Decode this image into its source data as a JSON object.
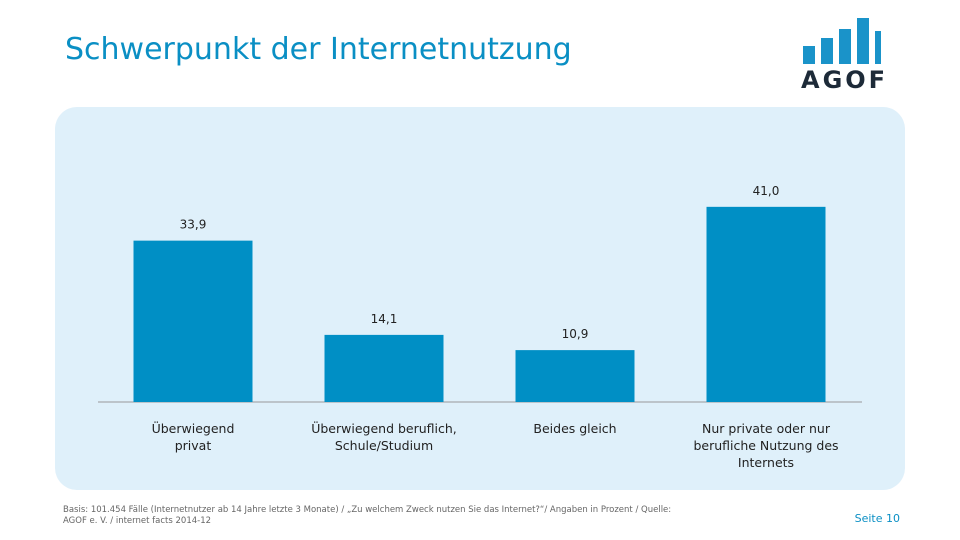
{
  "title": "Schwerpunkt der Internetnutzung",
  "logo": "AGOF",
  "chart_data": {
    "type": "bar",
    "categories": [
      "Überwiegend\nprivat",
      "Überwiegend beruflich,\nSchule/Studium",
      "Beides gleich",
      "Nur private oder nur\nberufliche Nutzung des\nInternets"
    ],
    "values": [
      33.9,
      14.1,
      10.9,
      41.0
    ],
    "value_labels": [
      "33,9",
      "14,1",
      "10,9",
      "41,0"
    ],
    "color": "#008fc5"
  },
  "footnote": "Basis: 101.454 Fälle (Internetnutzer ab 14 Jahre letzte 3 Monate) / „Zu welchem Zweck nutzen Sie das Internet?“/ Angaben in Prozent / Quelle: AGOF e. V. / internet facts 2014-12",
  "page": "Seite 10"
}
